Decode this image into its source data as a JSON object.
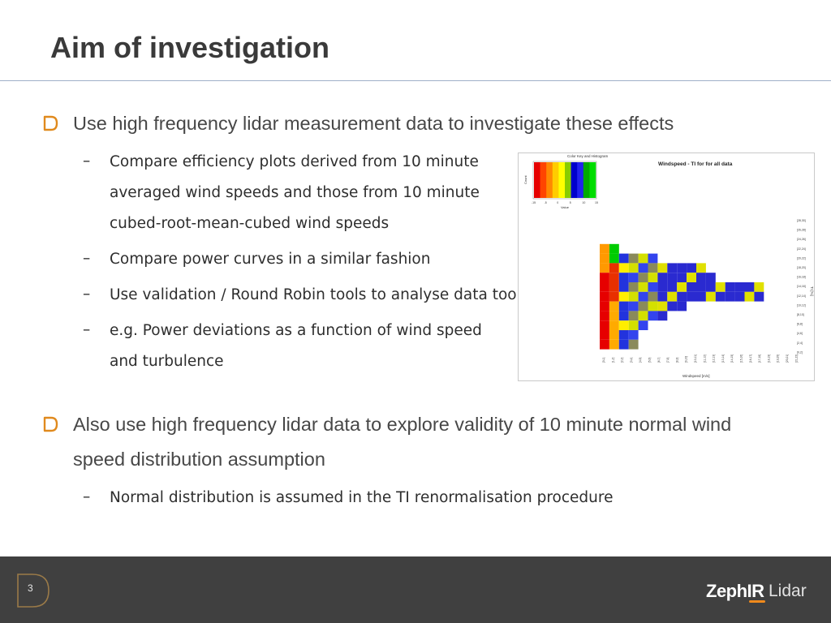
{
  "slide": {
    "title": "Aim of investigation",
    "page_number": "3"
  },
  "bullets": [
    {
      "lines": [
        "Use high frequency lidar measurement data to investigate these effects"
      ],
      "subs": [
        {
          "lines": [
            "Compare efficiency plots derived from 10 minute",
            "averaged wind speeds and those from 10 minute",
            "cubed-root-mean-cubed wind speeds"
          ]
        },
        {
          "lines": [
            "Compare power curves in a similar fashion"
          ]
        },
        {
          "lines": [
            "Use validation / Round Robin tools to analyse data too"
          ]
        },
        {
          "lines": [
            "e.g. Power deviations as a function of wind speed",
            "and turbulence"
          ]
        }
      ]
    },
    {
      "lines": [
        "Also use high frequency lidar data to explore validity of 10 minute normal wind",
        "speed distribution assumption"
      ],
      "subs": [
        {
          "lines": [
            "Normal distribution is assumed in the TI renormalisation procedure"
          ]
        }
      ]
    }
  ],
  "sub_dash": "–",
  "figure": {
    "title": "Windspeed - TI for for all data",
    "color_key_title": "Color Key and Histogram",
    "color_key_ylabel": "Count",
    "color_key_xlabel": "Value",
    "color_key_ticks": [
      "-15",
      "-5",
      "0",
      "5",
      "10",
      "15"
    ],
    "xlabel": "Windspeed [m/s]",
    "ylabel": "TI [%]",
    "x_ticks": [
      "[0,1]",
      "[1,2]",
      "[2,3]",
      "[3,4]",
      "[4,5]",
      "[5,6]",
      "[6,7]",
      "[7,8]",
      "[8,9]",
      "[9,10]",
      "[10,11]",
      "[11,12]",
      "[12,13]",
      "[13,14]",
      "[14,15]",
      "[15,16]",
      "[16,17]",
      "[17,18]",
      "[18,19]",
      "[19,20]",
      "[20,21]",
      "[21,22]"
    ],
    "y_ticks": [
      "[28,30]",
      "[26,28]",
      "[24,26]",
      "[22,24]",
      "[20,22]",
      "[18,20]",
      "[16,18]",
      "[14,16]",
      "[12,14]",
      "[10,12]",
      "[8,10]",
      "[6,8]",
      "[4,6]",
      "[2,4]",
      "[0,2]"
    ]
  },
  "chart_data": {
    "type": "heatmap",
    "title": "Windspeed - TI for for all data",
    "xlabel": "Windspeed [m/s]",
    "ylabel": "TI [%]",
    "color_scale": [
      "#e60000",
      "#ff8800",
      "#ffff00",
      "#0000dd",
      "#00dd00"
    ],
    "cell_colors": [
      [
        "#d0d0d0",
        "#d0d0d0",
        "#d0d0d0",
        "#d0d0d0",
        "#d0d0d0",
        "#d0d0d0",
        "#d0d0d0",
        "#d0d0d0",
        "#d0d0d0",
        "#d0d0d0",
        "#d0d0d0",
        "#d0d0d0",
        "#d0d0d0",
        "#d0d0d0",
        "#d0d0d0",
        "#d0d0d0",
        "#d0d0d0",
        "#d0d0d0",
        "#d0d0d0",
        "#d0d0d0",
        "#d0d0d0",
        "#d0d0d0"
      ]
    ]
  },
  "colors": {
    "title": "#3a3a3a",
    "rule": "#9fb0c8",
    "bullet": "#e08a1e",
    "footer": "#404040",
    "logo_accent": "#f08a1c"
  },
  "logo": {
    "part_a": "ZephIR",
    "part_b": "Lidar"
  }
}
